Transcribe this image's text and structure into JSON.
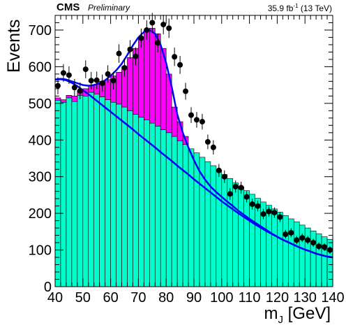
{
  "header": {
    "experiment": "CMS",
    "status": "Preliminary",
    "lumi_value": "35.9 fb",
    "lumi_exp": "-1",
    "lumi_energy": "(13 TeV)"
  },
  "chart_data": {
    "type": "bar",
    "ylabel": "Events",
    "xlabel_main": "m",
    "xlabel_sub": "J",
    "xlabel_unit": " [GeV]",
    "xlim": [
      40,
      140
    ],
    "ylim": [
      0,
      740
    ],
    "xticks": [
      40,
      50,
      60,
      70,
      80,
      90,
      100,
      110,
      120,
      130,
      140
    ],
    "yticks": [
      0,
      100,
      200,
      300,
      400,
      500,
      600,
      700
    ],
    "bin_width": 2,
    "colors": {
      "background": "#00ffcc",
      "signal": "#ff00ff",
      "fit": "#0000ff",
      "points": "#000000"
    },
    "background_values": [
      508,
      503,
      515,
      505,
      522,
      520,
      530,
      525,
      518,
      510,
      503,
      498,
      490,
      480,
      470,
      462,
      455,
      446,
      438,
      428,
      420,
      410,
      398,
      388,
      376,
      365,
      353,
      341,
      330,
      318,
      306,
      295,
      283,
      272,
      262,
      252,
      241,
      231,
      222,
      212,
      203,
      194,
      185,
      177,
      168,
      160,
      152,
      144,
      136,
      129
    ],
    "total_values": [
      515,
      510,
      522,
      520,
      535,
      540,
      548,
      552,
      560,
      565,
      575,
      585,
      600,
      625,
      650,
      680,
      700,
      705,
      690,
      650,
      580,
      490,
      450,
      410,
      370,
      345,
      320,
      305,
      295,
      280,
      268,
      258,
      246,
      236,
      226,
      217,
      208,
      199,
      190,
      181,
      172,
      164,
      156,
      148,
      140,
      132,
      125,
      118,
      111,
      104
    ],
    "bkg_fit": [
      565,
      566,
      563,
      556,
      547,
      536,
      525,
      513,
      501,
      489,
      477,
      465,
      453,
      441,
      429,
      416,
      404,
      392,
      380,
      367,
      355,
      343,
      330,
      318,
      306,
      293,
      281,
      269,
      257,
      245,
      233,
      222,
      211,
      200,
      190,
      180,
      170,
      161,
      152,
      144,
      136,
      128,
      121,
      114,
      107,
      101,
      96,
      90,
      86,
      82,
      80
    ],
    "total_fit": [
      565,
      567,
      565,
      560,
      555,
      550,
      548,
      550,
      555,
      563,
      575,
      590,
      608,
      632,
      658,
      680,
      695,
      700,
      690,
      660,
      610,
      545,
      470,
      420,
      380,
      345,
      315,
      292,
      273,
      258,
      245,
      232,
      220,
      207,
      196,
      185,
      175,
      165,
      155,
      145,
      136,
      128,
      121,
      114,
      107,
      101,
      96,
      90,
      86,
      82,
      80
    ],
    "data_points": [
      {
        "x": 41,
        "y": 548
      },
      {
        "x": 43,
        "y": 583
      },
      {
        "x": 45,
        "y": 577
      },
      {
        "x": 47,
        "y": 543
      },
      {
        "x": 49,
        "y": 534
      },
      {
        "x": 51,
        "y": 593
      },
      {
        "x": 53,
        "y": 562
      },
      {
        "x": 55,
        "y": 563
      },
      {
        "x": 57,
        "y": 555
      },
      {
        "x": 59,
        "y": 580
      },
      {
        "x": 61,
        "y": 562
      },
      {
        "x": 63,
        "y": 636
      },
      {
        "x": 65,
        "y": 597
      },
      {
        "x": 67,
        "y": 647
      },
      {
        "x": 69,
        "y": 628
      },
      {
        "x": 71,
        "y": 678
      },
      {
        "x": 73,
        "y": 700
      },
      {
        "x": 75,
        "y": 720
      },
      {
        "x": 77,
        "y": 665
      },
      {
        "x": 79,
        "y": 715
      },
      {
        "x": 81,
        "y": 705
      },
      {
        "x": 83,
        "y": 627
      },
      {
        "x": 85,
        "y": 605
      },
      {
        "x": 87,
        "y": 533
      },
      {
        "x": 89,
        "y": 468
      },
      {
        "x": 91,
        "y": 455
      },
      {
        "x": 93,
        "y": 450
      },
      {
        "x": 95,
        "y": 395
      },
      {
        "x": 97,
        "y": 380
      },
      {
        "x": 99,
        "y": 317
      },
      {
        "x": 101,
        "y": 300
      },
      {
        "x": 103,
        "y": 253
      },
      {
        "x": 105,
        "y": 273
      },
      {
        "x": 107,
        "y": 270
      },
      {
        "x": 109,
        "y": 245
      },
      {
        "x": 111,
        "y": 225
      },
      {
        "x": 113,
        "y": 220
      },
      {
        "x": 115,
        "y": 198
      },
      {
        "x": 117,
        "y": 205
      },
      {
        "x": 119,
        "y": 202
      },
      {
        "x": 121,
        "y": 190
      },
      {
        "x": 123,
        "y": 143
      },
      {
        "x": 125,
        "y": 147
      },
      {
        "x": 127,
        "y": 127
      },
      {
        "x": 129,
        "y": 133
      },
      {
        "x": 131,
        "y": 127
      },
      {
        "x": 133,
        "y": 120
      },
      {
        "x": 135,
        "y": 110
      },
      {
        "x": 137,
        "y": 108
      },
      {
        "x": 139,
        "y": 100
      }
    ]
  }
}
